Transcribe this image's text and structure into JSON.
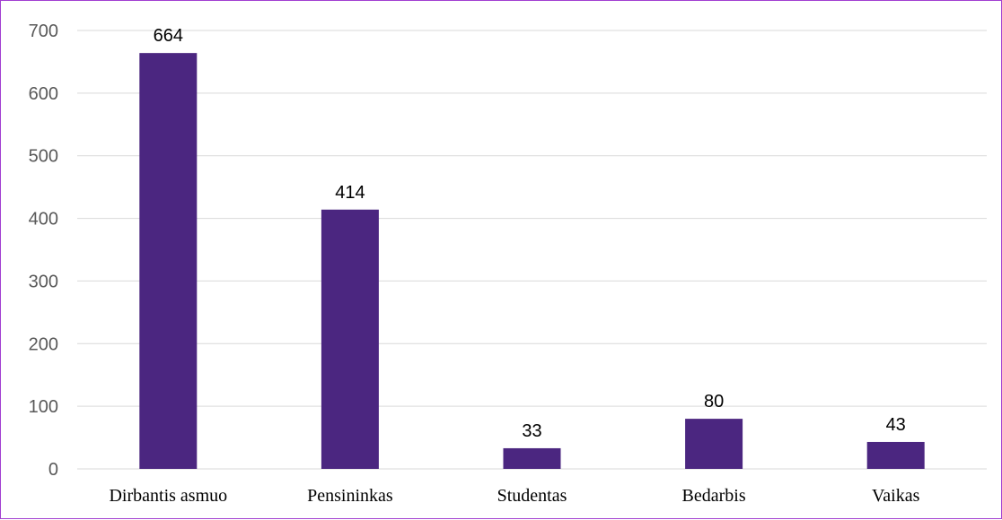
{
  "chart_data": {
    "type": "bar",
    "title": "",
    "xlabel": "",
    "ylabel": "",
    "categories": [
      "Dirbantis asmuo",
      "Pensininkas",
      "Studentas",
      "Bedarbis",
      "Vaikas"
    ],
    "values": [
      664,
      414,
      33,
      80,
      43
    ],
    "data_labels": [
      "664",
      "414",
      "33",
      "80",
      "43"
    ],
    "ylim": [
      0,
      700
    ],
    "y_ticks": [
      0,
      100,
      200,
      300,
      400,
      500,
      600,
      700
    ],
    "y_tick_labels": [
      "0",
      "100",
      "200",
      "300",
      "400",
      "500",
      "600",
      "700"
    ],
    "grid": true,
    "legend": "none",
    "colors": {
      "bar": "#4b2680",
      "grid": "#d9d9d9",
      "frame": "#a23fd1",
      "tick_text": "#595959"
    }
  }
}
